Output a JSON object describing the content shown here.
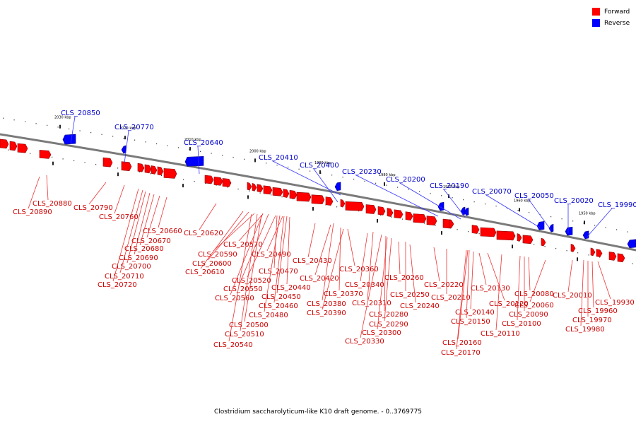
{
  "caption": "Clostridium saccharolyticum-like K10 draft genome. - 0..3769775",
  "legend": [
    {
      "label": "Forward",
      "color": "#ff0000"
    },
    {
      "label": "Reverse",
      "color": "#0000ff"
    }
  ],
  "colors": {
    "forward": "#ff0000",
    "reverse": "#0000ff",
    "forward_label": "#cc0000",
    "reverse_label": "#0000cc",
    "backbone": "#7a7a7a"
  },
  "scale_labels": [
    "2030 kbp",
    "2020 kbp",
    "2010 kbp",
    "2000 kbp",
    "1990 kbp",
    "1980 kbp",
    "1970 kbp",
    "1960 kbp",
    "1950 kbp"
  ],
  "reverse_labels": [
    "CLS_20850",
    "CLS_20770",
    "CLS_20640",
    "CLS_20410",
    "CLS_20400",
    "CLS_20230",
    "CLS_20200",
    "CLS_20190",
    "CLS_20070",
    "CLS_20050",
    "CLS_20020",
    "CLS_19990"
  ],
  "forward_labels": [
    "CLS_20880",
    "CLS_20890",
    "CLS_20790",
    "CLS_20760",
    "CLS_20660",
    "CLS_20670",
    "CLS_20680",
    "CLS_20690",
    "CLS_20700",
    "CLS_20710",
    "CLS_20720",
    "CLS_20620",
    "CLS_20570",
    "CLS_20590",
    "CLS_20600",
    "CLS_20610",
    "CLS_20490",
    "CLS_20520",
    "CLS_20470",
    "CLS_20550",
    "CLS_20560",
    "CLS_20440",
    "CLS_20450",
    "CLS_20460",
    "CLS_20480",
    "CLS_20500",
    "CLS_20510",
    "CLS_20540",
    "CLS_20430",
    "CLS_20420",
    "CLS_20380",
    "CLS_20390",
    "CLS_20370",
    "CLS_20360",
    "CLS_20340",
    "CLS_20310",
    "CLS_20280",
    "CLS_20290",
    "CLS_20300",
    "CLS_20330",
    "CLS_20260",
    "CLS_20250",
    "CLS_20240",
    "CLS_20220",
    "CLS_20210",
    "CLS_20130",
    "CLS_20140",
    "CLS_20150",
    "CLS_20120",
    "CLS_20160",
    "CLS_20170",
    "CLS_20110",
    "CLS_20080",
    "CLS_20090",
    "CLS_20100",
    "CLS_20060",
    "CLS_20010",
    "CLS_19930",
    "CLS_19960",
    "CLS_19970",
    "CLS_19980"
  ]
}
